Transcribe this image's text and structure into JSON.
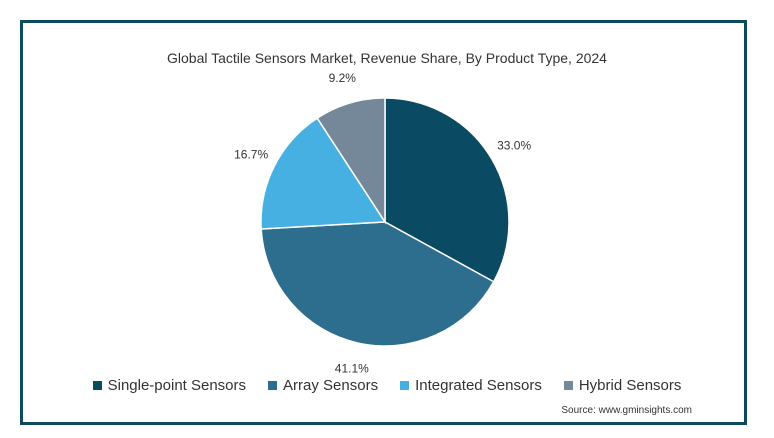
{
  "chart_data": {
    "type": "pie",
    "title": "Global Tactile Sensors Market, Revenue Share, By Product Type, 2024",
    "slices": [
      {
        "label": "Single-point Sensors",
        "value": 33.0,
        "display": "33.0%",
        "color": "#0a4b63"
      },
      {
        "label": "Array Sensors",
        "value": 41.1,
        "display": "41.1%",
        "color": "#2d6e8e"
      },
      {
        "label": "Integrated Sensors",
        "value": 16.7,
        "display": "16.7%",
        "color": "#46b0e3"
      },
      {
        "label": "Hybrid Sensors",
        "value": 9.2,
        "display": "9.2%",
        "color": "#75889a"
      }
    ],
    "legend_position": "bottom",
    "source": "Source: www.gminsights.com"
  }
}
